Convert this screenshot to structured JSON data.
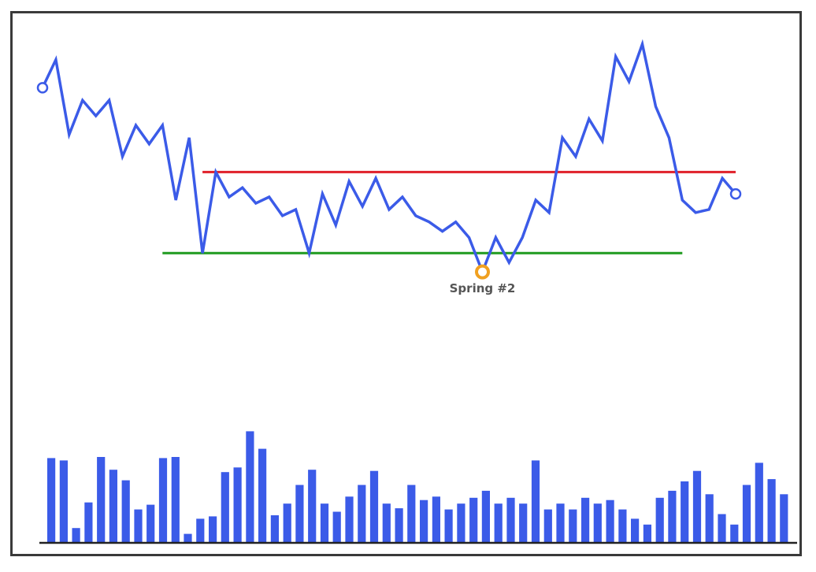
{
  "chart_data": {
    "type": "line",
    "title": "",
    "xlabel": "",
    "ylabel": "",
    "colors": {
      "price": "#3b5be8",
      "resistance": "#e0202a",
      "support": "#1f9a1f",
      "annotation": "#f0a020",
      "volume": "#3b5be8",
      "baseline": "#222222",
      "label": "#555555"
    },
    "price_series": {
      "name": "",
      "x": [
        0,
        1,
        2,
        3,
        4,
        5,
        6,
        7,
        8,
        9,
        10,
        11,
        12,
        13,
        14,
        15,
        16,
        17,
        18,
        19,
        20,
        21,
        22,
        23,
        24,
        25,
        26,
        27,
        28,
        29,
        30,
        31,
        32,
        33,
        34,
        35,
        36,
        37,
        38,
        39,
        40,
        41,
        42,
        43,
        44,
        45,
        46,
        47,
        48,
        49,
        50,
        51,
        52
      ],
      "y": [
        0.86,
        0.95,
        0.71,
        0.82,
        0.77,
        0.82,
        0.64,
        0.74,
        0.68,
        0.74,
        0.5,
        0.7,
        0.33,
        0.59,
        0.51,
        0.54,
        0.49,
        0.51,
        0.45,
        0.47,
        0.33,
        0.52,
        0.42,
        0.56,
        0.48,
        0.57,
        0.47,
        0.51,
        0.45,
        0.43,
        0.4,
        0.43,
        0.38,
        0.27,
        0.38,
        0.3,
        0.38,
        0.5,
        0.46,
        0.7,
        0.64,
        0.76,
        0.69,
        0.96,
        0.88,
        1.0,
        0.8,
        0.7,
        0.5,
        0.46,
        0.47,
        0.57,
        0.52
      ]
    },
    "resistance_level": {
      "y": 0.59,
      "x_range": [
        12,
        52
      ]
    },
    "support_level": {
      "y": 0.33,
      "x_range": [
        9,
        48
      ]
    },
    "annotation": {
      "label": "Spring #2",
      "point_index": 33
    },
    "volume_series": {
      "name": "",
      "values": [
        0.72,
        0.7,
        0.12,
        0.34,
        0.73,
        0.62,
        0.53,
        0.28,
        0.32,
        0.72,
        0.73,
        0.07,
        0.2,
        0.22,
        0.6,
        0.64,
        0.95,
        0.8,
        0.23,
        0.33,
        0.49,
        0.62,
        0.33,
        0.26,
        0.39,
        0.49,
        0.61,
        0.33,
        0.29,
        0.49,
        0.36,
        0.39,
        0.28,
        0.33,
        0.38,
        0.44,
        0.33,
        0.38,
        0.33,
        0.7,
        0.28,
        0.33,
        0.28,
        0.38,
        0.33,
        0.36,
        0.28,
        0.2,
        0.15,
        0.38,
        0.44,
        0.52,
        0.61,
        0.41,
        0.24,
        0.15,
        0.49,
        0.68,
        0.54,
        0.41
      ]
    }
  }
}
